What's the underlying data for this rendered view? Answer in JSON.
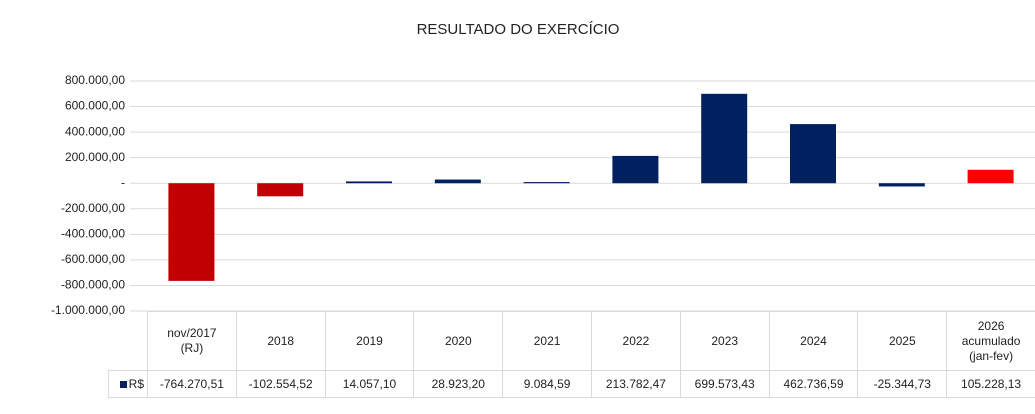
{
  "chart_data": {
    "type": "bar",
    "title": "RESULTADO DO EXERCÍCIO",
    "categories": [
      "nov/2017\n(RJ)",
      "2018",
      "2019",
      "2020",
      "2021",
      "2022",
      "2023",
      "2024",
      "2025",
      "2026\nacumulado\n(jan-fev)"
    ],
    "series": [
      {
        "name": "R$",
        "color": "#002060",
        "values": [
          -764270.51,
          -102554.52,
          14057.1,
          28923.2,
          9084.59,
          213782.47,
          699573.43,
          462736.59,
          -25344.73,
          105228.13
        ],
        "value_labels": [
          "-764.270,51",
          "-102.554,52",
          "14.057,10",
          "28.923,20",
          "9.084,59",
          "213.782,47",
          "699.573,43",
          "462.736,59",
          "-25.344,73",
          "105.228,13"
        ],
        "colors": [
          "#c00000",
          "#c00000",
          "#002060",
          "#002060",
          "#002060",
          "#002060",
          "#002060",
          "#002060",
          "#002060",
          "#ff0000"
        ]
      }
    ],
    "ylim": [
      -1000000,
      800000
    ],
    "yticks": [
      {
        "value": 800000,
        "label": "800.000,00"
      },
      {
        "value": 600000,
        "label": "600.000,00"
      },
      {
        "value": 400000,
        "label": "400.000,00"
      },
      {
        "value": 200000,
        "label": "200.000,00"
      },
      {
        "value": 0,
        "label": "-"
      },
      {
        "value": -200000,
        "label": "-200.000,00"
      },
      {
        "value": -400000,
        "label": "-400.000,00"
      },
      {
        "value": -600000,
        "label": "-600.000,00"
      },
      {
        "value": -800000,
        "label": "-800.000,00"
      },
      {
        "value": -1000000,
        "label": "-1.000.000,00"
      }
    ],
    "grid": true
  }
}
